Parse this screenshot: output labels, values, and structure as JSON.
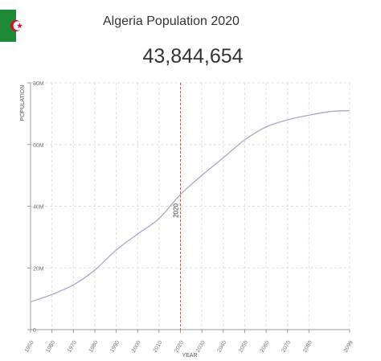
{
  "header": {
    "title": "Algeria Population 2020",
    "population": "43,844,654"
  },
  "flag": {
    "icon": "algeria-flag-icon",
    "green": "#1f8a3a",
    "white": "#ffffff",
    "red": "#d21034"
  },
  "chart_data": {
    "type": "line",
    "title": "",
    "xlabel": "YEAR",
    "ylabel": "POPULATION",
    "x_ticks": [
      "1950",
      "1960",
      "1970",
      "1980",
      "1990",
      "2000",
      "2010",
      "2020",
      "2030",
      "2040",
      "2050",
      "2060",
      "2070",
      "2080",
      "2099"
    ],
    "y_ticks": [
      "0",
      "20M",
      "40M",
      "60M",
      "80M"
    ],
    "xlim": [
      1950,
      2099
    ],
    "ylim": [
      0,
      80000000
    ],
    "grid": true,
    "marker": {
      "label": "2020",
      "x": 2020,
      "color": "#d9534f"
    },
    "series": [
      {
        "color": "#a9a9c8",
        "x": [
          1950,
          1960,
          1970,
          1980,
          1990,
          2000,
          2010,
          2020,
          2030,
          2040,
          2050,
          2060,
          2070,
          2080,
          2090,
          2099
        ],
        "y": [
          9000000,
          11400000,
          14500000,
          19300000,
          25800000,
          31000000,
          36000000,
          43800000,
          50000000,
          55700000,
          61500000,
          65700000,
          68000000,
          69500000,
          70700000,
          71000000
        ]
      }
    ]
  }
}
